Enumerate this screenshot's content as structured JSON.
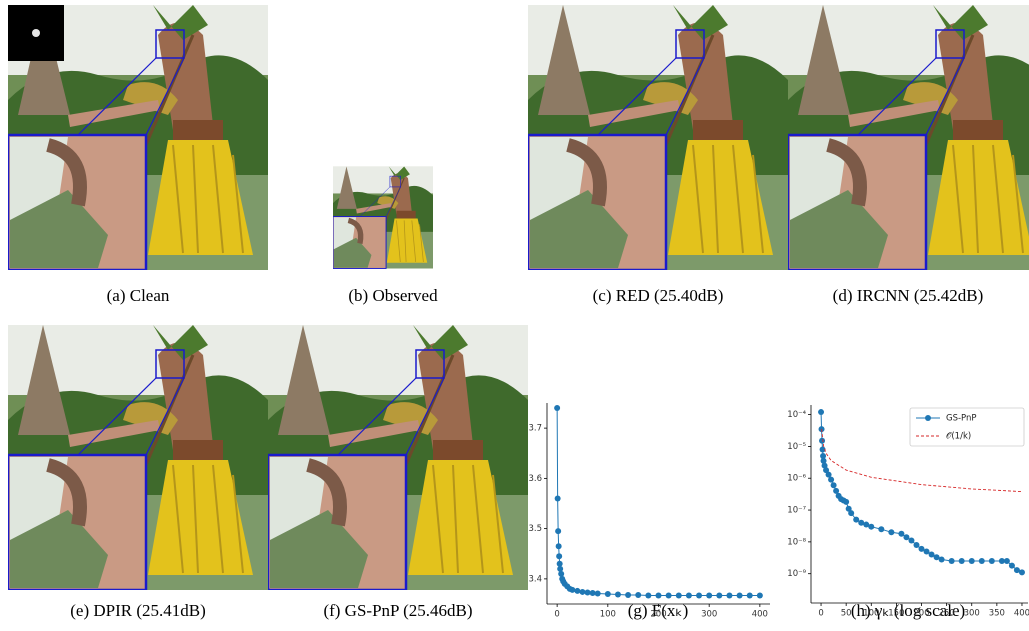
{
  "panels": [
    {
      "caption": "(a) Clean"
    },
    {
      "caption": "(b) Observed"
    },
    {
      "caption": "(c) RED (25.40dB)"
    },
    {
      "caption": "(d) IRCNN (25.42dB)"
    },
    {
      "caption": "(e) DPIR (25.41dB)"
    },
    {
      "caption": "(f) GS-PnP (25.46dB)"
    },
    {
      "caption": "(g) F(xₖ)"
    },
    {
      "caption": "(h) γₖ (log scale)"
    }
  ],
  "chart_data": [
    {
      "type": "line",
      "color": "#1f77b4",
      "marker": true,
      "x": [
        0,
        1,
        2,
        3,
        4,
        5,
        6,
        8,
        10,
        12,
        15,
        20,
        25,
        30,
        40,
        50,
        60,
        70,
        80,
        100,
        120,
        140,
        160,
        180,
        200,
        220,
        240,
        260,
        280,
        300,
        320,
        340,
        360,
        380,
        400
      ],
      "values": [
        3.74,
        3.56,
        3.495,
        3.465,
        3.445,
        3.43,
        3.42,
        3.41,
        3.4,
        3.395,
        3.39,
        3.385,
        3.38,
        3.378,
        3.376,
        3.374,
        3.373,
        3.372,
        3.371,
        3.37,
        3.369,
        3.368,
        3.368,
        3.367,
        3.367,
        3.367,
        3.367,
        3.367,
        3.367,
        3.367,
        3.367,
        3.367,
        3.367,
        3.367,
        3.367
      ],
      "xlim": [
        -20,
        420
      ],
      "ylim": [
        3.35,
        3.75
      ],
      "xticks": [
        0,
        100,
        200,
        300,
        400
      ],
      "yticks": [
        3.4,
        3.5,
        3.6,
        3.7
      ]
    },
    {
      "type": "line",
      "log_y": true,
      "legend": "upper right",
      "series": [
        {
          "name": "GS-PnP",
          "color": "#1f77b4",
          "marker": true,
          "x": [
            0,
            1,
            2,
            3,
            4,
            5,
            7,
            10,
            15,
            20,
            25,
            30,
            35,
            40,
            45,
            50,
            55,
            60,
            70,
            80,
            90,
            100,
            120,
            140,
            160,
            170,
            180,
            190,
            200,
            210,
            220,
            230,
            240,
            260,
            280,
            300,
            320,
            340,
            360,
            370,
            380,
            390,
            400
          ],
          "values": [
            0.00012,
            3.5e-05,
            1.5e-05,
            8e-06,
            5e-06,
            3.5e-06,
            2.5e-06,
            1.8e-06,
            1.3e-06,
            9e-07,
            6e-07,
            4e-07,
            2.8e-07,
            2.2e-07,
            2e-07,
            1.8e-07,
            1.1e-07,
            8e-08,
            5e-08,
            4e-08,
            3.5e-08,
            3e-08,
            2.5e-08,
            2e-08,
            1.8e-08,
            1.4e-08,
            1.1e-08,
            8e-09,
            6e-09,
            5e-09,
            4e-09,
            3.3e-09,
            2.8e-09,
            2.5e-09,
            2.5e-09,
            2.5e-09,
            2.5e-09,
            2.5e-09,
            2.5e-09,
            2.5e-09,
            1.8e-09,
            1.3e-09,
            1.1e-09
          ]
        },
        {
          "name": "𝒪(1/k)",
          "color": "#d62728",
          "dashed": true,
          "x": [
            1,
            5,
            10,
            20,
            50,
            100,
            200,
            300,
            400
          ],
          "values": [
            3.5e-05,
            1.04e-05,
            6.1e-06,
            3.6e-06,
            1.8e-06,
            1.07e-06,
            6.3e-07,
            4.6e-07,
            3.8e-07
          ]
        }
      ],
      "xlim": [
        -20,
        412
      ],
      "ylim": [
        1.2e-10,
        0.0002
      ],
      "xticks": [
        0,
        50,
        100,
        150,
        200,
        250,
        300,
        350,
        400
      ],
      "yticks": [
        {
          "value": 0.0001,
          "label": "10⁻⁴"
        },
        {
          "value": 1e-05,
          "label": "10⁻⁵"
        },
        {
          "value": 1e-06,
          "label": "10⁻⁶"
        },
        {
          "value": 1e-07,
          "label": "10⁻⁷"
        },
        {
          "value": 1e-08,
          "label": "10⁻⁸"
        },
        {
          "value": 1e-09,
          "label": "10⁻⁹"
        }
      ]
    }
  ]
}
